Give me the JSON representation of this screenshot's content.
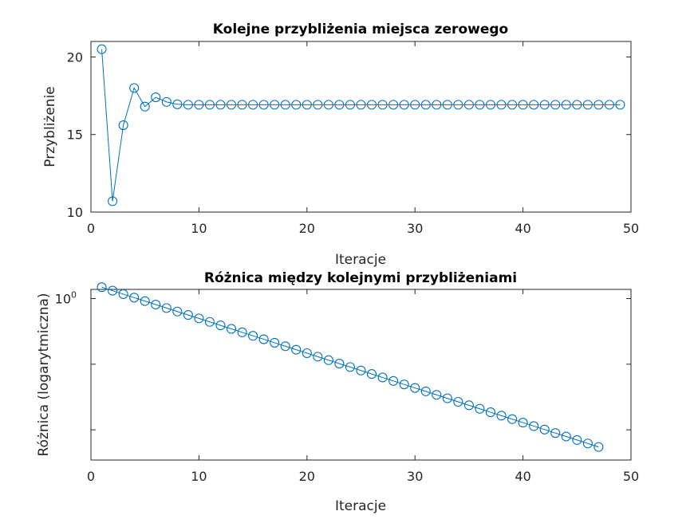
{
  "colors": {
    "series": "#0072BD",
    "axis": "#262626"
  },
  "chart_data": [
    {
      "type": "line",
      "title": "Kolejne przybliżenia miejsca zerowego",
      "xlabel": "Iteracje",
      "ylabel": "Przybliżenie",
      "xlim": [
        0,
        50
      ],
      "ylim": [
        10,
        21
      ],
      "xticks": [
        0,
        10,
        20,
        30,
        40,
        50
      ],
      "yticks": [
        10,
        15,
        20
      ],
      "xtick_labels": [
        "0",
        "10",
        "20",
        "30",
        "40",
        "50"
      ],
      "ytick_labels": [
        "10",
        "15",
        "20"
      ],
      "marker": "circle",
      "series": [
        {
          "x": [
            1,
            2,
            3,
            4,
            5,
            6,
            7,
            8,
            9,
            10,
            11,
            12,
            13,
            14,
            15,
            16,
            17,
            18,
            19,
            20,
            21,
            22,
            23,
            24,
            25,
            26,
            27,
            28,
            29,
            30,
            31,
            32,
            33,
            34,
            35,
            36,
            37,
            38,
            39,
            40,
            41,
            42,
            43,
            44,
            45,
            46,
            47,
            48,
            49
          ],
          "values": [
            20.5,
            10.7,
            15.6,
            18.0,
            16.8,
            17.4,
            17.1,
            16.95,
            16.92,
            16.92,
            16.92,
            16.92,
            16.92,
            16.92,
            16.92,
            16.92,
            16.92,
            16.92,
            16.92,
            16.92,
            16.92,
            16.92,
            16.92,
            16.92,
            16.92,
            16.92,
            16.92,
            16.92,
            16.92,
            16.92,
            16.92,
            16.92,
            16.92,
            16.92,
            16.92,
            16.92,
            16.92,
            16.92,
            16.92,
            16.92,
            16.92,
            16.92,
            16.92,
            16.92,
            16.92,
            16.92,
            16.92,
            16.92,
            16.92
          ]
        }
      ]
    },
    {
      "type": "line",
      "title": "Różnica między kolejnymi przybliżeniami",
      "xlabel": "Iteracje",
      "ylabel": "Różnica (logarytmiczna)",
      "xlim": [
        0,
        50
      ],
      "ylim_log10": [
        -2.46,
        0.14
      ],
      "yscale": "log",
      "xticks": [
        0,
        10,
        20,
        30,
        40,
        50
      ],
      "xtick_labels": [
        "0",
        "10",
        "20",
        "30",
        "40",
        "50"
      ],
      "yticks_log10": [
        0,
        -1,
        -2
      ],
      "ytick_labels": [
        "10",
        "",
        ""
      ],
      "ytick_superscripts": [
        "0",
        "",
        ""
      ],
      "marker": "circle",
      "series": [
        {
          "x": [
            1,
            2,
            3,
            4,
            5,
            6,
            7,
            8,
            9,
            10,
            11,
            12,
            13,
            14,
            15,
            16,
            17,
            18,
            19,
            20,
            21,
            22,
            23,
            24,
            25,
            26,
            27,
            28,
            29,
            30,
            31,
            32,
            33,
            34,
            35,
            36,
            37,
            38,
            39,
            40,
            41,
            42,
            43,
            44,
            45,
            46,
            47
          ],
          "log10_values": [
            0.174,
            0.121,
            0.068,
            0.015,
            -0.038,
            -0.091,
            -0.144,
            -0.197,
            -0.25,
            -0.302,
            -0.355,
            -0.408,
            -0.461,
            -0.514,
            -0.567,
            -0.62,
            -0.673,
            -0.726,
            -0.779,
            -0.832,
            -0.885,
            -0.938,
            -0.991,
            -1.043,
            -1.096,
            -1.149,
            -1.202,
            -1.255,
            -1.308,
            -1.361,
            -1.414,
            -1.467,
            -1.52,
            -1.573,
            -1.626,
            -1.679,
            -1.732,
            -1.784,
            -1.837,
            -1.89,
            -1.943,
            -1.996,
            -2.049,
            -2.102,
            -2.155,
            -2.208,
            -2.261
          ]
        }
      ]
    }
  ]
}
